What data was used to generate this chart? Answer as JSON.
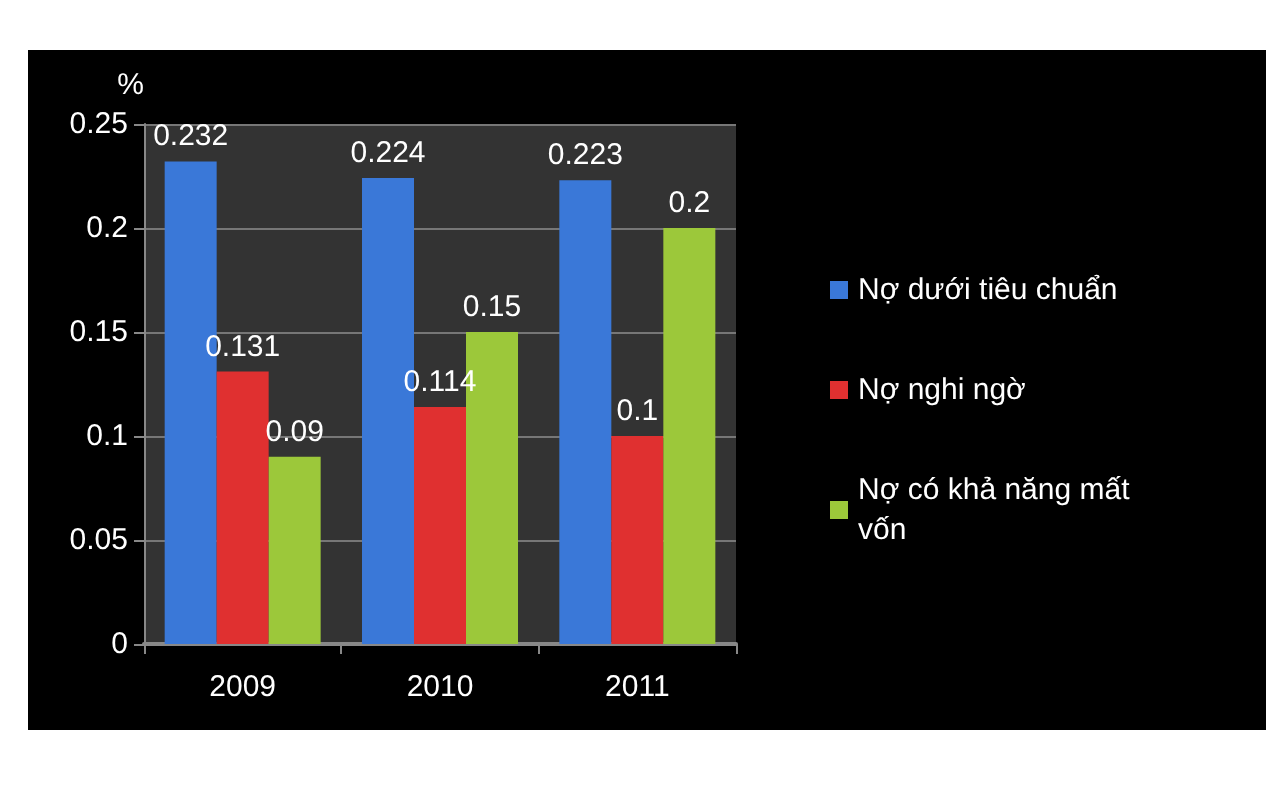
{
  "chart_data": {
    "type": "bar",
    "ylabel": "%",
    "categories": [
      "2009",
      "2010",
      "2011"
    ],
    "series": [
      {
        "name": "Nợ dưới tiêu chuẩn",
        "color": "#3a78d8",
        "values": [
          0.232,
          0.224,
          0.223
        ]
      },
      {
        "name": "Nợ nghi ngờ",
        "color": "#e03030",
        "values": [
          0.131,
          0.114,
          0.1
        ]
      },
      {
        "name": "Nợ có khả năng mất vốn",
        "color": "#9cc83a",
        "values": [
          0.09,
          0.15,
          0.2
        ]
      }
    ],
    "ylim": [
      0,
      0.25
    ],
    "yticks": [
      0,
      0.05,
      0.1,
      0.15,
      0.2,
      0.25
    ],
    "grid": "y",
    "legend": "right",
    "data_labels": true
  }
}
